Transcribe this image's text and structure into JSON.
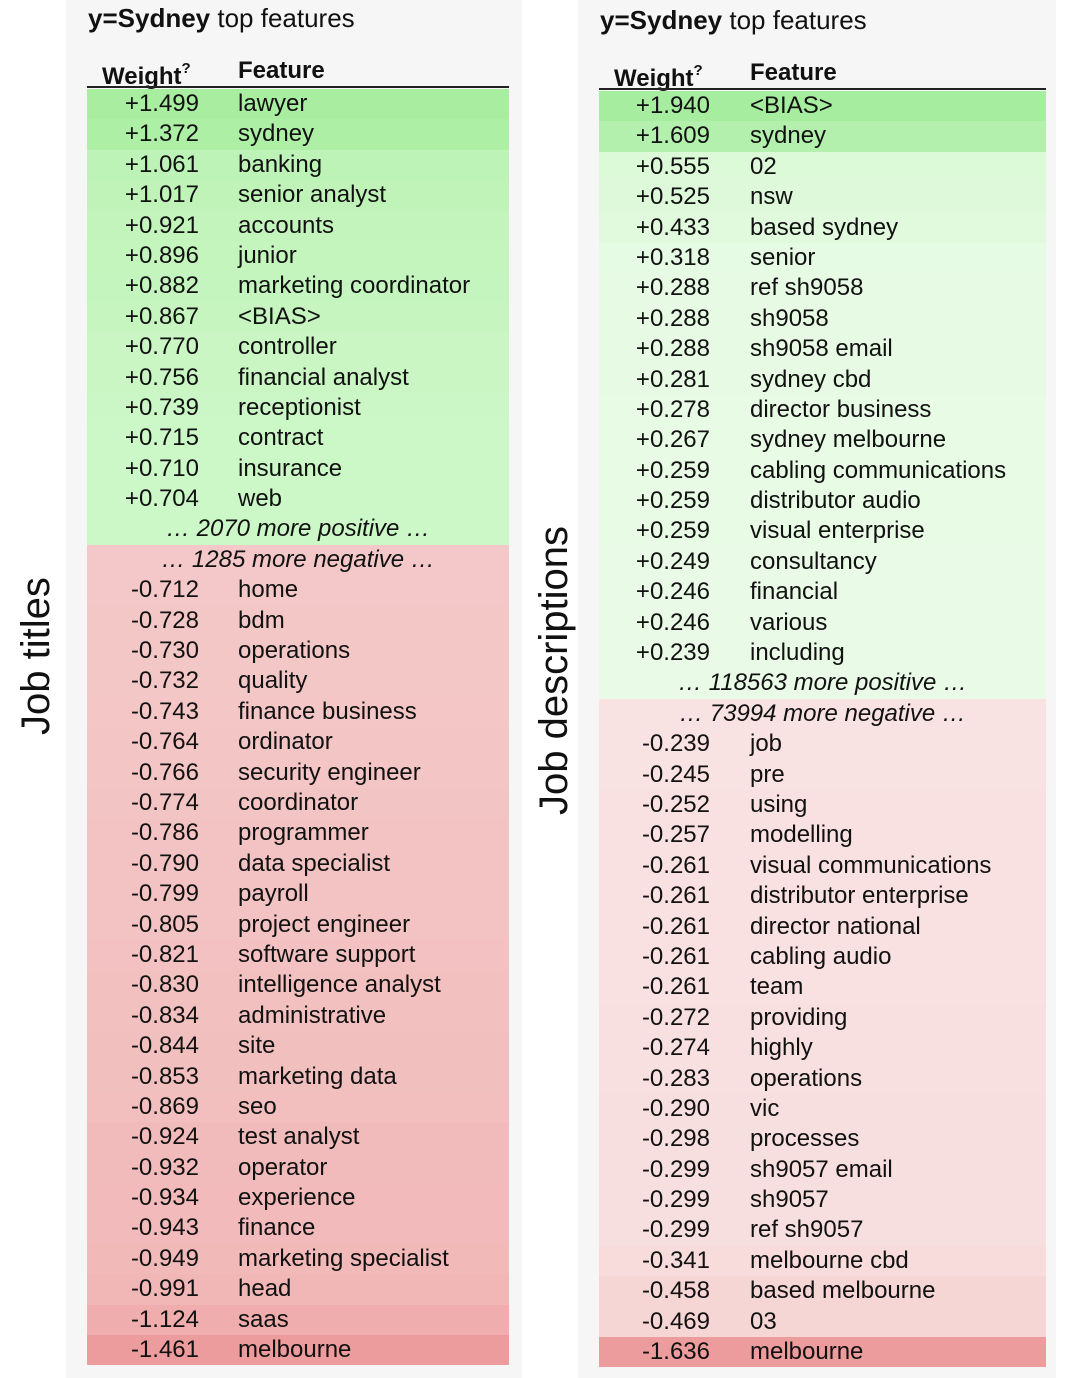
{
  "side_labels": {
    "left": "Job titles",
    "right": "Job descriptions"
  },
  "left_panel": {
    "title_bold": "y=Sydney",
    "title_rest": " top features",
    "header_weight": "Weight",
    "header_weight_sup": "?",
    "header_feature": "Feature",
    "rows": [
      {
        "w": "+1.499",
        "f": "lawyer",
        "bg": "#a8eda0"
      },
      {
        "w": "+1.372",
        "f": "sydney",
        "bg": "#aeefa6"
      },
      {
        "w": "+1.061",
        "f": "banking",
        "bg": "#bdf3b6"
      },
      {
        "w": "+1.017",
        "f": "senior analyst",
        "bg": "#bff3b8"
      },
      {
        "w": "+0.921",
        "f": "accounts",
        "bg": "#c3f4bc"
      },
      {
        "w": "+0.896",
        "f": "junior",
        "bg": "#c4f5bd"
      },
      {
        "w": "+0.882",
        "f": "marketing coordinator",
        "bg": "#c5f5be"
      },
      {
        "w": "+0.867",
        "f": "<BIAS>",
        "bg": "#c6f5bf"
      },
      {
        "w": "+0.770",
        "f": "controller",
        "bg": "#c9f6c3"
      },
      {
        "w": "+0.756",
        "f": "financial analyst",
        "bg": "#caf6c4"
      },
      {
        "w": "+0.739",
        "f": "receptionist",
        "bg": "#cbf6c5"
      },
      {
        "w": "+0.715",
        "f": "contract",
        "bg": "#ccf7c6"
      },
      {
        "w": "+0.710",
        "f": "insurance",
        "bg": "#ccf7c6"
      },
      {
        "w": "+0.704",
        "f": "web",
        "bg": "#ccf7c6"
      },
      {
        "summary": "… 2070 more positive …",
        "bg": "#ccf7c6"
      },
      {
        "summary": "… 1285 more negative …",
        "bg": "#f4c8c8"
      },
      {
        "w": "-0.712",
        "f": "home",
        "bg": "#f4c8c8"
      },
      {
        "w": "-0.728",
        "f": "bdm",
        "bg": "#f4c7c7"
      },
      {
        "w": "-0.730",
        "f": "operations",
        "bg": "#f4c7c7"
      },
      {
        "w": "-0.732",
        "f": "quality",
        "bg": "#f4c7c7"
      },
      {
        "w": "-0.743",
        "f": "finance business",
        "bg": "#f4c6c6"
      },
      {
        "w": "-0.764",
        "f": "ordinator",
        "bg": "#f4c5c5"
      },
      {
        "w": "-0.766",
        "f": "security engineer",
        "bg": "#f4c5c5"
      },
      {
        "w": "-0.774",
        "f": "coordinator",
        "bg": "#f3c4c4"
      },
      {
        "w": "-0.786",
        "f": "programmer",
        "bg": "#f3c3c3"
      },
      {
        "w": "-0.790",
        "f": "data specialist",
        "bg": "#f3c3c3"
      },
      {
        "w": "-0.799",
        "f": "payroll",
        "bg": "#f3c2c2"
      },
      {
        "w": "-0.805",
        "f": "project engineer",
        "bg": "#f3c2c2"
      },
      {
        "w": "-0.821",
        "f": "software support",
        "bg": "#f3c1c1"
      },
      {
        "w": "-0.830",
        "f": "intelligence analyst",
        "bg": "#f3c0c0"
      },
      {
        "w": "-0.834",
        "f": "administrative",
        "bg": "#f3c0c0"
      },
      {
        "w": "-0.844",
        "f": "site",
        "bg": "#f2bfbf"
      },
      {
        "w": "-0.853",
        "f": "marketing data",
        "bg": "#f2bfbf"
      },
      {
        "w": "-0.869",
        "f": "seo",
        "bg": "#f2bebe"
      },
      {
        "w": "-0.924",
        "f": "test analyst",
        "bg": "#f2bbbb"
      },
      {
        "w": "-0.932",
        "f": "operator",
        "bg": "#f2bbbb"
      },
      {
        "w": "-0.934",
        "f": "experience",
        "bg": "#f2baba"
      },
      {
        "w": "-0.943",
        "f": "finance",
        "bg": "#f2baba"
      },
      {
        "w": "-0.949",
        "f": "marketing specialist",
        "bg": "#f2b9b9"
      },
      {
        "w": "-0.991",
        "f": "head",
        "bg": "#f1b6b6"
      },
      {
        "w": "-1.124",
        "f": "saas",
        "bg": "#efadad"
      },
      {
        "w": "-1.461",
        "f": "melbourne",
        "bg": "#ec9c9c"
      }
    ]
  },
  "right_panel": {
    "title_bold": "y=Sydney",
    "title_rest": " top features",
    "header_weight": "Weight",
    "header_weight_sup": "?",
    "header_feature": "Feature",
    "rows": [
      {
        "w": "+1.940",
        "f": "<BIAS>",
        "bg": "#a6eda0"
      },
      {
        "w": "+1.609",
        "f": "sydney",
        "bg": "#b4f0ad"
      },
      {
        "w": "+0.555",
        "f": "02",
        "bg": "#dcf9d8"
      },
      {
        "w": "+0.525",
        "f": "nsw",
        "bg": "#ddf9d9"
      },
      {
        "w": "+0.433",
        "f": "based sydney",
        "bg": "#e1fadd"
      },
      {
        "w": "+0.318",
        "f": "senior",
        "bg": "#e6fbe3"
      },
      {
        "w": "+0.288",
        "f": "ref sh9058",
        "bg": "#e7fbe4"
      },
      {
        "w": "+0.288",
        "f": "sh9058",
        "bg": "#e7fbe4"
      },
      {
        "w": "+0.288",
        "f": "sh9058 email",
        "bg": "#e7fbe4"
      },
      {
        "w": "+0.281",
        "f": "sydney cbd",
        "bg": "#e7fbe4"
      },
      {
        "w": "+0.278",
        "f": "director business",
        "bg": "#e8fbe5"
      },
      {
        "w": "+0.267",
        "f": "sydney melbourne",
        "bg": "#e8fbe5"
      },
      {
        "w": "+0.259",
        "f": "cabling communications",
        "bg": "#e8fbe5"
      },
      {
        "w": "+0.259",
        "f": "distributor audio",
        "bg": "#e8fbe5"
      },
      {
        "w": "+0.259",
        "f": "visual enterprise",
        "bg": "#e8fbe5"
      },
      {
        "w": "+0.249",
        "f": "consultancy",
        "bg": "#e9fbe6"
      },
      {
        "w": "+0.246",
        "f": "financial",
        "bg": "#e9fbe6"
      },
      {
        "w": "+0.246",
        "f": "various",
        "bg": "#e9fbe6"
      },
      {
        "w": "+0.239",
        "f": "including",
        "bg": "#e9fbe6"
      },
      {
        "summary": "… 118563 more positive …",
        "bg": "#e9fbe6"
      },
      {
        "summary": "… 73994 more negative …",
        "bg": "#f9e2e2"
      },
      {
        "w": "-0.239",
        "f": "job",
        "bg": "#f9e2e2"
      },
      {
        "w": "-0.245",
        "f": "pre",
        "bg": "#f9e2e2"
      },
      {
        "w": "-0.252",
        "f": "using",
        "bg": "#f9e1e1"
      },
      {
        "w": "-0.257",
        "f": "modelling",
        "bg": "#f9e1e1"
      },
      {
        "w": "-0.261",
        "f": "visual communications",
        "bg": "#f9e1e1"
      },
      {
        "w": "-0.261",
        "f": "distributor enterprise",
        "bg": "#f9e1e1"
      },
      {
        "w": "-0.261",
        "f": "director national",
        "bg": "#f9e1e1"
      },
      {
        "w": "-0.261",
        "f": "cabling audio",
        "bg": "#f9e1e1"
      },
      {
        "w": "-0.261",
        "f": "team",
        "bg": "#f9e1e1"
      },
      {
        "w": "-0.272",
        "f": "providing",
        "bg": "#f9e0e0"
      },
      {
        "w": "-0.274",
        "f": "highly",
        "bg": "#f9e0e0"
      },
      {
        "w": "-0.283",
        "f": "operations",
        "bg": "#f9e0e0"
      },
      {
        "w": "-0.290",
        "f": "vic",
        "bg": "#f8dfdf"
      },
      {
        "w": "-0.298",
        "f": "processes",
        "bg": "#f8dfdf"
      },
      {
        "w": "-0.299",
        "f": "sh9057 email",
        "bg": "#f8dfdf"
      },
      {
        "w": "-0.299",
        "f": "sh9057",
        "bg": "#f8dfdf"
      },
      {
        "w": "-0.299",
        "f": "ref sh9057",
        "bg": "#f8dfdf"
      },
      {
        "w": "-0.341",
        "f": "melbourne cbd",
        "bg": "#f8dcdc"
      },
      {
        "w": "-0.458",
        "f": "based melbourne",
        "bg": "#f6d5d5"
      },
      {
        "w": "-0.469",
        "f": "03",
        "bg": "#f6d5d5"
      },
      {
        "w": "-1.636",
        "f": "melbourne",
        "bg": "#ec9c9c"
      }
    ]
  }
}
